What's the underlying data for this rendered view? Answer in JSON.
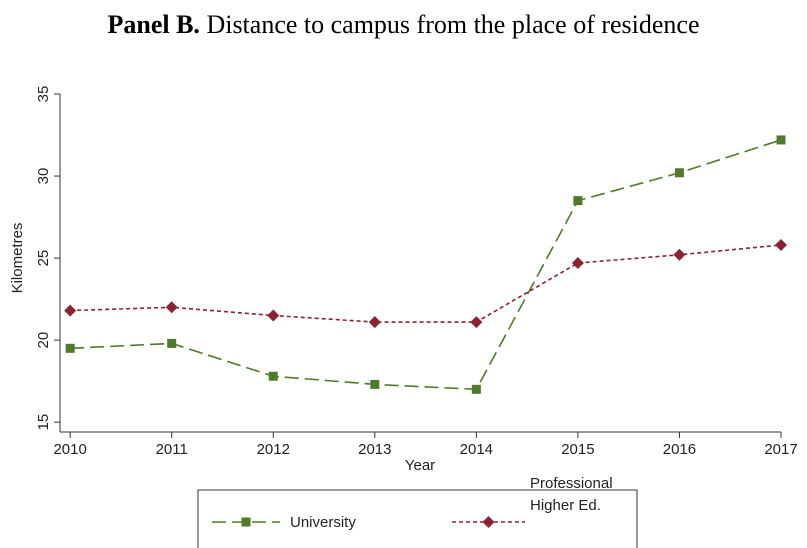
{
  "chart_data": {
    "type": "line",
    "panel": "Panel B.",
    "title": "Distance to campus from the place of residence",
    "x_label": "Year",
    "y_label": "Kilometres",
    "x": [
      2010,
      2011,
      2012,
      2013,
      2014,
      2015,
      2016,
      2017
    ],
    "xlim": [
      2009.9,
      2017
    ],
    "xticks": [
      2010,
      2011,
      2012,
      2013,
      2014,
      2015,
      2016,
      2017
    ],
    "ylim": [
      14.4,
      35
    ],
    "yticks": [
      15,
      20,
      25,
      30,
      35
    ],
    "grid": false,
    "series": [
      {
        "name": "University",
        "color": "#4f7a28",
        "marker": "square",
        "dash": "long",
        "values": [
          19.5,
          19.8,
          17.8,
          17.3,
          17.0,
          28.5,
          30.2,
          32.2
        ]
      },
      {
        "name": "Professional Higher Ed.",
        "color": "#8b2332",
        "marker": "diamond",
        "dash": "short",
        "values": [
          21.8,
          22.0,
          21.5,
          21.1,
          21.1,
          24.7,
          25.2,
          25.8
        ]
      }
    ]
  }
}
